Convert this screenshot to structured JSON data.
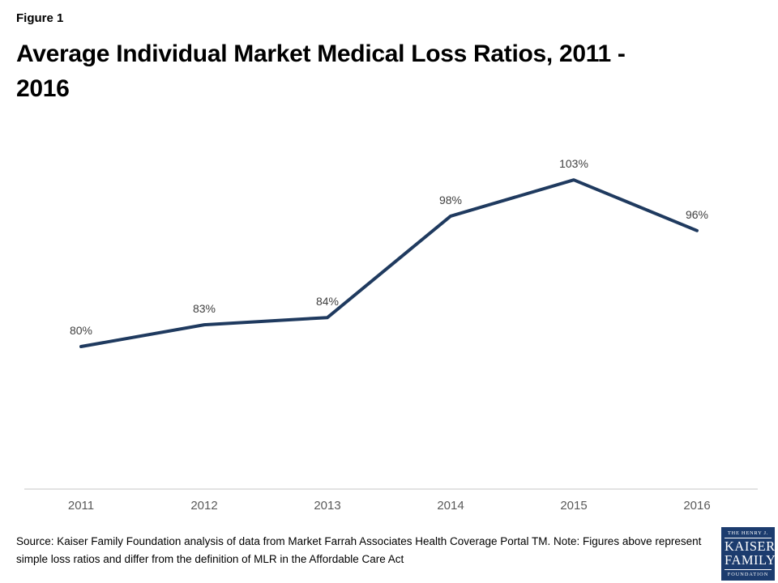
{
  "figure_label": "Figure 1",
  "title": "Average Individual Market Medical Loss Ratios, 2011 - 2016",
  "chart_data": {
    "type": "line",
    "title": "Average Individual Market Medical Loss Ratios, 2011 - 2016",
    "categories": [
      "2011",
      "2012",
      "2013",
      "2014",
      "2015",
      "2016"
    ],
    "values": [
      80,
      83,
      84,
      98,
      103,
      96
    ],
    "point_labels": [
      "80%",
      "83%",
      "84%",
      "98%",
      "103%",
      "96%"
    ],
    "xlabel": "",
    "ylabel": "",
    "ylim": [
      60,
      110
    ],
    "grid": false,
    "legend_position": "none",
    "line_color": "#1f3a5f",
    "axis_line_color": "#d9d9d9",
    "data_label_color": "#404040",
    "tick_label_color": "#595959"
  },
  "source_note": "Source: Kaiser Family Foundation analysis of data from Market Farrah Associates Health Coverage Portal TM. Note: Figures above represent simple loss ratios and differ from the definition of MLR in the Affordable Care Act",
  "logo": {
    "line1": "THE HENRY J.",
    "line2": "KAISER",
    "line3": "FAMILY",
    "line4": "FOUNDATION",
    "bg_color": "#1c3c6e"
  }
}
